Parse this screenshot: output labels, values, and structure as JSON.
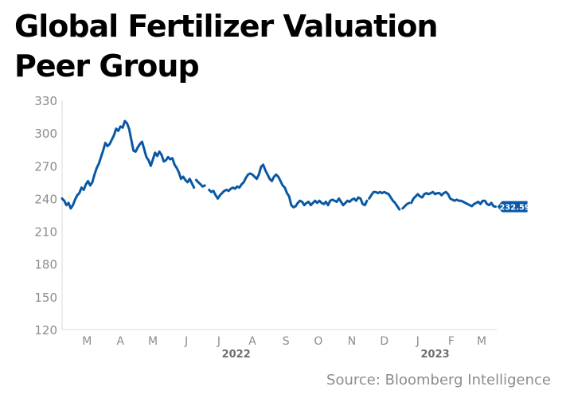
{
  "title": "Global Fertilizer Valuation Peer Group",
  "source": "Source: Bloomberg Intelligence",
  "colors": {
    "line": "#0a58a5",
    "axis_text": "#8c8c8c",
    "axis_line": "#d8d8d8",
    "year_text": "#6e6e6e"
  },
  "chart_data": {
    "type": "line",
    "title": "Global Fertilizer Valuation Peer Group",
    "ylim": [
      120,
      330
    ],
    "yticks": [
      "330",
      "300",
      "270",
      "240",
      "210",
      "180",
      "150",
      "120"
    ],
    "ytick_values": [
      330,
      300,
      270,
      240,
      210,
      180,
      150,
      120
    ],
    "x_range": [
      "2022-02-20",
      "2023-03-29"
    ],
    "month_ticks": [
      {
        "label": "M",
        "date": "2022-03-15"
      },
      {
        "label": "A",
        "date": "2022-04-15"
      },
      {
        "label": "M",
        "date": "2022-05-15"
      },
      {
        "label": "J",
        "date": "2022-06-15"
      },
      {
        "label": "J",
        "date": "2022-07-15"
      },
      {
        "label": "A",
        "date": "2022-08-15"
      },
      {
        "label": "S",
        "date": "2022-09-15"
      },
      {
        "label": "O",
        "date": "2022-10-15"
      },
      {
        "label": "N",
        "date": "2022-11-15"
      },
      {
        "label": "D",
        "date": "2022-12-15"
      },
      {
        "label": "J",
        "date": "2023-01-15"
      },
      {
        "label": "F",
        "date": "2023-02-15"
      },
      {
        "label": "M",
        "date": "2023-03-15"
      }
    ],
    "year_labels": [
      {
        "label": "2022",
        "date": "2022-07-31"
      },
      {
        "label": "2023",
        "date": "2023-01-31"
      }
    ],
    "last_value_label": "232.59",
    "series": [
      {
        "segments": [
          [
            [
              "2022-02-20",
              240
            ],
            [
              "2022-02-22",
              238
            ],
            [
              "2022-02-24",
              234
            ],
            [
              "2022-02-26",
              236
            ],
            [
              "2022-02-28",
              231
            ],
            [
              "2022-03-02",
              234
            ],
            [
              "2022-03-04",
              239
            ],
            [
              "2022-03-06",
              243
            ],
            [
              "2022-03-08",
              245
            ],
            [
              "2022-03-10",
              250
            ],
            [
              "2022-03-12",
              248
            ],
            [
              "2022-03-14",
              253
            ],
            [
              "2022-03-16",
              256
            ],
            [
              "2022-03-18",
              252
            ],
            [
              "2022-03-20",
              255
            ],
            [
              "2022-03-22",
              262
            ],
            [
              "2022-03-24",
              268
            ],
            [
              "2022-03-26",
              272
            ],
            [
              "2022-03-28",
              278
            ],
            [
              "2022-03-30",
              284
            ],
            [
              "2022-04-01",
              291
            ],
            [
              "2022-04-03",
              288
            ],
            [
              "2022-04-05",
              290
            ],
            [
              "2022-04-07",
              294
            ],
            [
              "2022-04-09",
              298
            ],
            [
              "2022-04-11",
              304
            ],
            [
              "2022-04-13",
              302
            ],
            [
              "2022-04-15",
              306
            ],
            [
              "2022-04-17",
              305
            ],
            [
              "2022-04-19",
              311
            ],
            [
              "2022-04-21",
              309
            ],
            [
              "2022-04-23",
              304
            ],
            [
              "2022-04-25",
              294
            ],
            [
              "2022-04-27",
              284
            ],
            [
              "2022-04-29",
              283
            ],
            [
              "2022-05-01",
              287
            ],
            [
              "2022-05-03",
              290
            ],
            [
              "2022-05-05",
              292
            ],
            [
              "2022-05-07",
              285
            ],
            [
              "2022-05-09",
              278
            ],
            [
              "2022-05-11",
              275
            ],
            [
              "2022-05-13",
              270
            ],
            [
              "2022-05-15",
              276
            ],
            [
              "2022-05-17",
              282
            ],
            [
              "2022-05-19",
              279
            ],
            [
              "2022-05-21",
              283
            ],
            [
              "2022-05-23",
              280
            ],
            [
              "2022-05-25",
              274
            ],
            [
              "2022-05-27",
              275
            ],
            [
              "2022-05-29",
              278
            ],
            [
              "2022-05-31",
              276
            ],
            [
              "2022-06-02",
              277
            ],
            [
              "2022-06-04",
              271
            ],
            [
              "2022-06-06",
              268
            ],
            [
              "2022-06-08",
              264
            ],
            [
              "2022-06-10",
              258
            ],
            [
              "2022-06-12",
              260
            ],
            [
              "2022-06-14",
              257
            ],
            [
              "2022-06-16",
              255
            ],
            [
              "2022-06-18",
              258
            ],
            [
              "2022-06-20",
              254
            ],
            [
              "2022-06-22",
              250
            ]
          ],
          [
            [
              "2022-06-24",
              257
            ],
            [
              "2022-06-26",
              255
            ],
            [
              "2022-06-28",
              253
            ],
            [
              "2022-06-30",
              251
            ],
            [
              "2022-07-02",
              252
            ]
          ],
          [
            [
              "2022-07-06",
              248
            ],
            [
              "2022-07-08",
              246
            ],
            [
              "2022-07-10",
              247
            ],
            [
              "2022-07-12",
              243
            ],
            [
              "2022-07-14",
              240
            ],
            [
              "2022-07-16",
              243
            ],
            [
              "2022-07-18",
              245
            ],
            [
              "2022-07-20",
              247
            ],
            [
              "2022-07-22",
              248
            ],
            [
              "2022-07-24",
              247
            ],
            [
              "2022-07-26",
              249
            ],
            [
              "2022-07-28",
              250
            ],
            [
              "2022-07-30",
              249
            ],
            [
              "2022-08-01",
              251
            ],
            [
              "2022-08-03",
              250
            ],
            [
              "2022-08-05",
              253
            ],
            [
              "2022-08-07",
              255
            ],
            [
              "2022-08-09",
              259
            ],
            [
              "2022-08-11",
              262
            ],
            [
              "2022-08-13",
              263
            ],
            [
              "2022-08-15",
              262
            ],
            [
              "2022-08-17",
              260
            ],
            [
              "2022-08-19",
              258
            ],
            [
              "2022-08-21",
              262
            ],
            [
              "2022-08-23",
              269
            ],
            [
              "2022-08-25",
              271
            ],
            [
              "2022-08-27",
              266
            ],
            [
              "2022-08-29",
              262
            ],
            [
              "2022-08-31",
              258
            ],
            [
              "2022-09-02",
              256
            ],
            [
              "2022-09-04",
              260
            ],
            [
              "2022-09-06",
              262
            ],
            [
              "2022-09-08",
              260
            ],
            [
              "2022-09-10",
              256
            ],
            [
              "2022-09-12",
              252
            ],
            [
              "2022-09-14",
              250
            ],
            [
              "2022-09-16",
              245
            ],
            [
              "2022-09-18",
              242
            ],
            [
              "2022-09-20",
              234
            ],
            [
              "2022-09-22",
              232
            ],
            [
              "2022-09-24",
              233
            ],
            [
              "2022-09-26",
              236
            ],
            [
              "2022-09-28",
              238
            ],
            [
              "2022-09-30",
              237
            ],
            [
              "2022-10-02",
              234
            ],
            [
              "2022-10-04",
              236
            ],
            [
              "2022-10-06",
              237
            ],
            [
              "2022-10-08",
              234
            ],
            [
              "2022-10-10",
              236
            ],
            [
              "2022-10-12",
              238
            ],
            [
              "2022-10-14",
              236
            ],
            [
              "2022-10-16",
              238
            ],
            [
              "2022-10-18",
              236
            ],
            [
              "2022-10-20",
              235
            ],
            [
              "2022-10-22",
              237
            ],
            [
              "2022-10-24",
              234
            ],
            [
              "2022-10-26",
              238
            ],
            [
              "2022-10-28",
              239
            ],
            [
              "2022-10-30",
              238
            ],
            [
              "2022-11-01",
              237
            ],
            [
              "2022-11-03",
              240
            ],
            [
              "2022-11-05",
              237
            ],
            [
              "2022-11-07",
              234
            ],
            [
              "2022-11-09",
              236
            ],
            [
              "2022-11-11",
              238
            ],
            [
              "2022-11-13",
              237
            ],
            [
              "2022-11-15",
              239
            ],
            [
              "2022-11-17",
              240
            ],
            [
              "2022-11-19",
              238
            ],
            [
              "2022-11-21",
              241
            ],
            [
              "2022-11-23",
              240
            ],
            [
              "2022-11-25",
              235
            ],
            [
              "2022-11-27",
              234
            ],
            [
              "2022-11-29",
              238
            ]
          ],
          [
            [
              "2022-12-01",
              240
            ],
            [
              "2022-12-03",
              243
            ],
            [
              "2022-12-05",
              246
            ],
            [
              "2022-12-07",
              246
            ],
            [
              "2022-12-09",
              245
            ],
            [
              "2022-12-11",
              246
            ],
            [
              "2022-12-13",
              245
            ],
            [
              "2022-12-15",
              246
            ],
            [
              "2022-12-17",
              245
            ],
            [
              "2022-12-19",
              244
            ],
            [
              "2022-12-21",
              241
            ],
            [
              "2022-12-23",
              238
            ],
            [
              "2022-12-25",
              236
            ],
            [
              "2022-12-27",
              233
            ],
            [
              "2022-12-29",
              230
            ]
          ],
          [
            [
              "2023-01-01",
              231
            ],
            [
              "2023-01-03",
              233
            ],
            [
              "2023-01-05",
              235
            ],
            [
              "2023-01-07",
              236
            ]
          ],
          [
            [
              "2023-01-09",
              236
            ],
            [
              "2023-01-11",
              240
            ],
            [
              "2023-01-13",
              242
            ],
            [
              "2023-01-15",
              244
            ],
            [
              "2023-01-17",
              242
            ],
            [
              "2023-01-19",
              241
            ],
            [
              "2023-01-21",
              244
            ],
            [
              "2023-01-23",
              245
            ],
            [
              "2023-01-25",
              244
            ],
            [
              "2023-01-27",
              245
            ],
            [
              "2023-01-29",
              246
            ],
            [
              "2023-01-31",
              244
            ],
            [
              "2023-02-02",
              245
            ],
            [
              "2023-02-04",
              245
            ],
            [
              "2023-02-06",
              243
            ],
            [
              "2023-02-08",
              245
            ],
            [
              "2023-02-10",
              246
            ],
            [
              "2023-02-12",
              244
            ],
            [
              "2023-02-14",
              240
            ],
            [
              "2023-02-16",
              239
            ],
            [
              "2023-02-18",
              238
            ],
            [
              "2023-02-20",
              239
            ],
            [
              "2023-02-22",
              238
            ],
            [
              "2023-02-24",
              238
            ],
            [
              "2023-02-26",
              237
            ],
            [
              "2023-02-28",
              236
            ],
            [
              "2023-03-02",
              235
            ],
            [
              "2023-03-04",
              234
            ],
            [
              "2023-03-06",
              233
            ],
            [
              "2023-03-08",
              235
            ],
            [
              "2023-03-10",
              236
            ],
            [
              "2023-03-12",
              237
            ],
            [
              "2023-03-14",
              235
            ],
            [
              "2023-03-16",
              238
            ],
            [
              "2023-03-18",
              238
            ],
            [
              "2023-03-20",
              235
            ],
            [
              "2023-03-22",
              234
            ],
            [
              "2023-03-24",
              236
            ],
            [
              "2023-03-26",
              233
            ],
            [
              "2023-03-28",
              232.59
            ]
          ]
        ]
      }
    ]
  }
}
